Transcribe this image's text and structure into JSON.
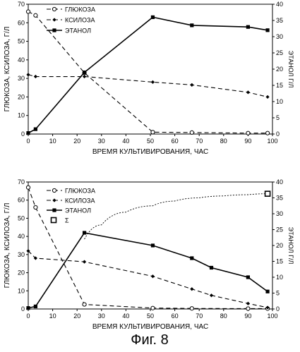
{
  "figure_caption": "Фиг. 8",
  "chart_data": [
    {
      "type": "line",
      "xlabel": "ВРЕМЯ КУЛЬТИВИРОВАНИЯ, ЧАС",
      "ylabel": "ГЛЮКОЗА, КСИЛОЗА, Г/Л",
      "y2label": "ЭТАНОЛ Г/Л",
      "xlim": [
        0,
        100
      ],
      "ylim": [
        0,
        70
      ],
      "y2lim": [
        0,
        40
      ],
      "xticks": [
        0,
        10,
        20,
        30,
        40,
        50,
        60,
        70,
        80,
        90,
        100
      ],
      "yticks": [
        0,
        10,
        20,
        30,
        40,
        50,
        60,
        70
      ],
      "y2ticks": [
        0,
        5,
        10,
        15,
        20,
        25,
        30,
        35,
        40
      ],
      "legend_position": "top-left",
      "grid": false,
      "series": [
        {
          "name": "ГЛЮКОЗА",
          "axis": "left",
          "style": "dash",
          "marker": "open-circle",
          "x": [
            0,
            3,
            23,
            51,
            67,
            90,
            98
          ],
          "y": [
            66,
            64,
            33,
            1,
            0.8,
            0.5,
            0.5
          ]
        },
        {
          "name": "КСИЛОЗА",
          "axis": "left",
          "style": "dash",
          "marker": "diamond",
          "x": [
            0,
            3,
            23,
            51,
            67,
            90,
            98
          ],
          "y": [
            32,
            31,
            31,
            28,
            26.5,
            22.5,
            20
          ]
        },
        {
          "name": "ЭТАНОЛ",
          "axis": "right",
          "style": "solid",
          "marker": "square",
          "x": [
            0,
            3,
            23,
            51,
            67,
            90,
            98
          ],
          "y": [
            0.3,
            1.5,
            19,
            36,
            33.5,
            33,
            32
          ]
        }
      ]
    },
    {
      "type": "line",
      "xlabel": "ВРЕМЯ КУЛЬТИВИРОВАНИЯ, ЧАС",
      "ylabel": "ГЛЮКОЗА, КСИЛОЗА, Г/Л",
      "y2label": "ЭТАНОЛ Г/Л",
      "xlim": [
        0,
        100
      ],
      "ylim": [
        0,
        70
      ],
      "y2lim": [
        0,
        40
      ],
      "xticks": [
        0,
        10,
        20,
        30,
        40,
        50,
        60,
        70,
        80,
        90,
        100
      ],
      "yticks": [
        0,
        10,
        20,
        30,
        40,
        50,
        60,
        70
      ],
      "y2ticks": [
        0,
        5,
        10,
        15,
        20,
        25,
        30,
        35,
        40
      ],
      "legend_position": "top-left",
      "grid": false,
      "series": [
        {
          "name": "ГЛЮКОЗА",
          "axis": "left",
          "style": "dash",
          "marker": "open-circle",
          "x": [
            0,
            3,
            23,
            51,
            67,
            90,
            98
          ],
          "y": [
            67,
            56,
            2.5,
            0.5,
            0.3,
            0.2,
            0.2
          ]
        },
        {
          "name": "КСИЛОЗА",
          "axis": "left",
          "style": "dash",
          "marker": "diamond",
          "x": [
            0,
            3,
            23,
            51,
            67,
            75,
            90,
            98
          ],
          "y": [
            32,
            28,
            26,
            18,
            11,
            7.5,
            3,
            0.8
          ]
        },
        {
          "name": "ЭТАНОЛ",
          "axis": "right",
          "style": "solid",
          "marker": "square",
          "x": [
            0,
            3,
            23,
            51,
            67,
            75,
            90,
            98
          ],
          "y": [
            0.3,
            0.8,
            24,
            20,
            16,
            13,
            10,
            5.5
          ]
        },
        {
          "name": "Σ",
          "axis": "right",
          "style": "dotted",
          "marker": "open-square",
          "x": [
            23,
            30,
            40,
            51,
            60,
            70,
            80,
            90,
            98
          ],
          "y": [
            22,
            26.5,
            30.5,
            32.5,
            34,
            35,
            35.6,
            36,
            36.3
          ]
        }
      ]
    }
  ]
}
